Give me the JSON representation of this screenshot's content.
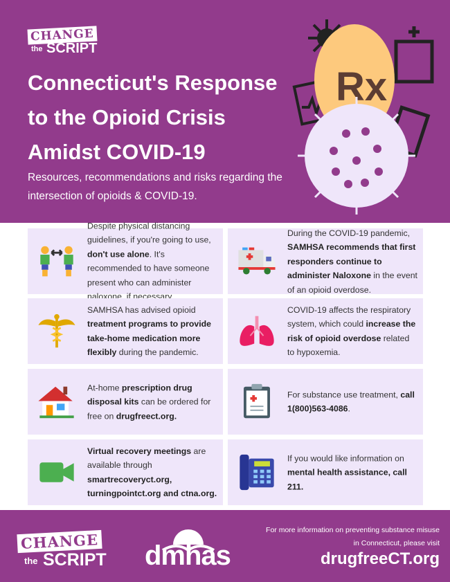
{
  "header": {
    "logo": {
      "change": "CHANGE",
      "the": "the",
      "script": "SCRIPT"
    },
    "title": "Connecticut's Response to the Opioid Crisis Amidst COVID-19",
    "subtitle": "Resources, recommendations and risks regarding the intersection of opioids & COVID-19.",
    "art_text": "Rx"
  },
  "cards": [
    {
      "icon": "people-distance-icon",
      "text": [
        {
          "t": "Despite physical distancing guidelines, if you're going to use, "
        },
        {
          "t": "don't use alone",
          "b": true
        },
        {
          "t": ". It's recommended to have someone present who can administer naloxone, if necessary."
        }
      ]
    },
    {
      "icon": "ambulance-icon",
      "text": [
        {
          "t": "During the COVID-19 pandemic, "
        },
        {
          "t": "SAMHSA recommends that first responders continue to administer Naloxone",
          "b": true
        },
        {
          "t": " in the event of an opioid overdose."
        }
      ]
    },
    {
      "icon": "caduceus-icon",
      "text": [
        {
          "t": "SAMHSA has advised opioid "
        },
        {
          "t": "treatment programs to provide take-home medication more flexibly",
          "b": true
        },
        {
          "t": " during the pandemic."
        }
      ]
    },
    {
      "icon": "lungs-icon",
      "text": [
        {
          "t": "COVID-19 affects the respiratory system, which could "
        },
        {
          "t": "increase the risk of opioid overdose",
          "b": true
        },
        {
          "t": " related to hypoxemia."
        }
      ]
    },
    {
      "icon": "house-icon",
      "text": [
        {
          "t": "At-home "
        },
        {
          "t": "prescription drug disposal kits",
          "b": true
        },
        {
          "t": " can be ordered for free on "
        },
        {
          "t": "drugfreect.org.",
          "b": true
        }
      ]
    },
    {
      "icon": "clipboard-icon",
      "text": [
        {
          "t": "For substance use treatment, "
        },
        {
          "t": "call 1(800)563-4086",
          "b": true
        },
        {
          "t": "."
        }
      ]
    },
    {
      "icon": "video-camera-icon",
      "text": [
        {
          "t": "Virtual recovery meetings",
          "b": true
        },
        {
          "t": " are available through "
        },
        {
          "t": "smartrecoveryct.org, turningpointct.org and ctna.org.",
          "b": true
        }
      ]
    },
    {
      "icon": "telephone-icon",
      "text": [
        {
          "t": "If you would like information on "
        },
        {
          "t": "mental health assistance, call 211.",
          "b": true
        }
      ]
    }
  ],
  "footer": {
    "logo": {
      "change": "CHANGE",
      "the": "the",
      "script": "SCRIPT"
    },
    "dmhas": "dmhas",
    "info": "For more information on preventing substance misuse in Connecticut, please visit",
    "url": "drugfreeCT.org"
  },
  "colors": {
    "brand_purple": "#923b8c",
    "card_bg": "#efe6fa",
    "accent_orange": "#fdc97d"
  }
}
